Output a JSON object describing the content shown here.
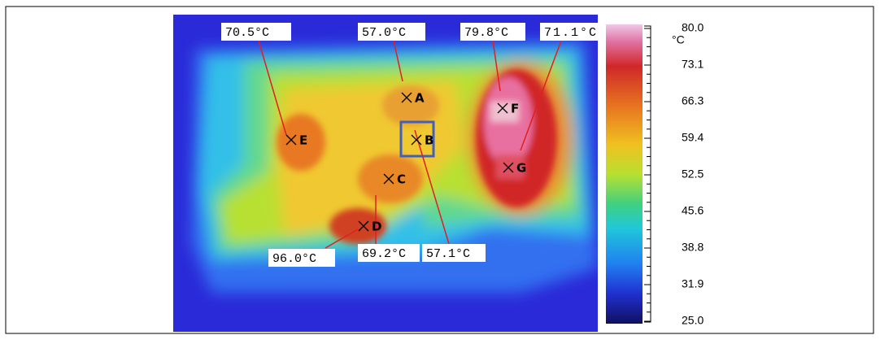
{
  "image": {
    "callouts": [
      "70.5°C",
      "57.0°C",
      "79.8°C",
      "71.1°C",
      "96.0°C",
      "69.2°C",
      "57.1°C"
    ],
    "markers": [
      "A",
      "B",
      "C",
      "D",
      "E",
      "F",
      "G"
    ]
  },
  "scale": {
    "unit": "°C",
    "ticks": [
      "80.0",
      "73.1",
      "66.3",
      "59.4",
      "52.5",
      "45.6",
      "38.8",
      "31.9",
      "25.0"
    ]
  }
}
